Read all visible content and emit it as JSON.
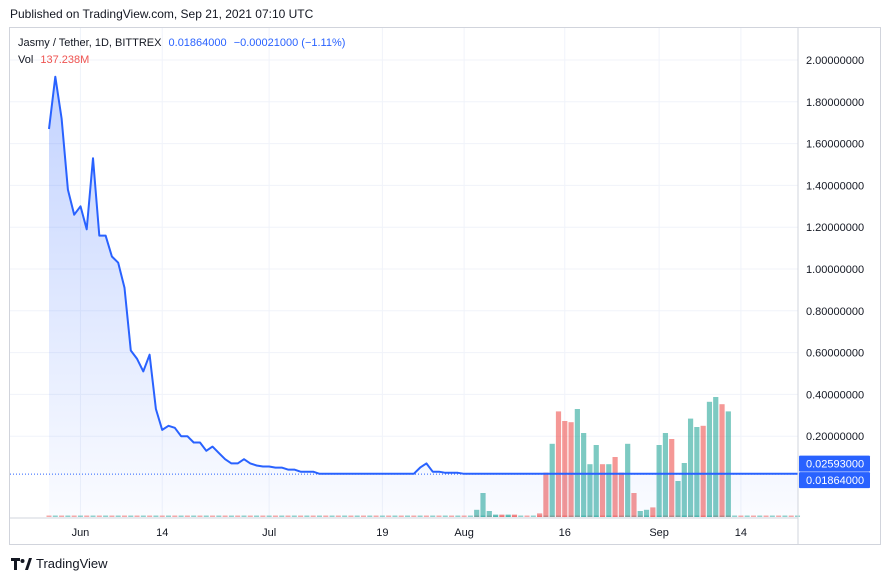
{
  "header": {
    "published": "Published on TradingView.com, Sep 21, 2021 07:10 UTC"
  },
  "legend": {
    "symbol": "Jasmy / Tether, 1D, BITTREX",
    "close": "0.01864000",
    "change": "−0.00021000 (−1.11%)",
    "vol_label": "Vol",
    "vol_value": "137.238M"
  },
  "footer": {
    "brand": "TradingView",
    "logo_icon": "tradingview-logo-icon"
  },
  "colors": {
    "line": "#2962ff",
    "area": "#2962ff",
    "vol_up": "#26a69a",
    "vol_down": "#ef5350",
    "grid": "#f0f3fa",
    "axis_text": "#131722"
  },
  "chart_data": {
    "type": "area",
    "x_unit": "date 2021",
    "ylim": [
      0,
      2.2
    ],
    "grid": true,
    "x_tick_labels": [
      {
        "day": 5,
        "label": "Jun"
      },
      {
        "day": 18,
        "label": "14"
      },
      {
        "day": 35,
        "label": "Jul"
      },
      {
        "day": 53,
        "label": "19"
      },
      {
        "day": 66,
        "label": "Aug"
      },
      {
        "day": 82,
        "label": "16"
      },
      {
        "day": 97,
        "label": "Sep"
      },
      {
        "day": 110,
        "label": "14"
      }
    ],
    "y_tick_labels": [
      "0.20000000",
      "0.40000000",
      "0.60000000",
      "0.80000000",
      "1.00000000",
      "1.20000000",
      "1.40000000",
      "1.60000000",
      "1.80000000",
      "2.00000000"
    ],
    "y_ticks": [
      0.2,
      0.4,
      0.6,
      0.8,
      1.0,
      1.2,
      1.4,
      1.6,
      1.8,
      2.0
    ],
    "price_labels": [
      {
        "value": 0.02593,
        "text": "0.02593000"
      },
      {
        "value": 0.01864,
        "text": "0.01864000"
      }
    ],
    "series": [
      {
        "name": "Jasmy / Tether",
        "x_start": "2021-05-27",
        "values": [
          1.67,
          1.92,
          1.72,
          1.38,
          1.26,
          1.3,
          1.19,
          1.53,
          1.16,
          1.16,
          1.06,
          1.03,
          0.91,
          0.61,
          0.57,
          0.51,
          0.59,
          0.33,
          0.23,
          0.25,
          0.24,
          0.2,
          0.2,
          0.17,
          0.17,
          0.13,
          0.15,
          0.12,
          0.09,
          0.07,
          0.07,
          0.09,
          0.07,
          0.06,
          0.055,
          0.055,
          0.05,
          0.05,
          0.04,
          0.04,
          0.03,
          0.03,
          0.03,
          0.02,
          0.02,
          0.02,
          0.02,
          0.02,
          0.02,
          0.02,
          0.02,
          0.02,
          0.02,
          0.02,
          0.02,
          0.02,
          0.02,
          0.02,
          0.02,
          0.05,
          0.07,
          0.03,
          0.03,
          0.025,
          0.025,
          0.025,
          0.02,
          0.02,
          0.02,
          0.02,
          0.02,
          0.02,
          0.02,
          0.02,
          0.02,
          0.02,
          0.02,
          0.02,
          0.02,
          0.02,
          0.02,
          0.02,
          0.02,
          0.02,
          0.02,
          0.02,
          0.02,
          0.02,
          0.02,
          0.02,
          0.02,
          0.02,
          0.02,
          0.02,
          0.02,
          0.02,
          0.02,
          0.02,
          0.02,
          0.02,
          0.02,
          0.02,
          0.02,
          0.02,
          0.02,
          0.02,
          0.02,
          0.02,
          0.02,
          0.02,
          0.02,
          0.02,
          0.02,
          0.02,
          0.02,
          0.02,
          0.02,
          0.02,
          0.02,
          0.02
        ]
      }
    ],
    "volume": {
      "name": "Vol",
      "bars": [
        {
          "day": 68,
          "v": 0.06,
          "up": true
        },
        {
          "day": 69,
          "v": 0.2,
          "up": true
        },
        {
          "day": 70,
          "v": 0.05,
          "up": true
        },
        {
          "day": 71,
          "v": 0.02,
          "up": true
        },
        {
          "day": 72,
          "v": 0.02,
          "up": false
        },
        {
          "day": 73,
          "v": 0.02,
          "up": true
        },
        {
          "day": 74,
          "v": 0.02,
          "up": false
        },
        {
          "day": 78,
          "v": 0.03,
          "up": false
        },
        {
          "day": 79,
          "v": 0.37,
          "up": false
        },
        {
          "day": 80,
          "v": 0.61,
          "up": true
        },
        {
          "day": 81,
          "v": 0.88,
          "up": false
        },
        {
          "day": 82,
          "v": 0.8,
          "up": false
        },
        {
          "day": 83,
          "v": 0.79,
          "up": false
        },
        {
          "day": 84,
          "v": 0.9,
          "up": true
        },
        {
          "day": 85,
          "v": 0.7,
          "up": true
        },
        {
          "day": 86,
          "v": 0.44,
          "up": true
        },
        {
          "day": 87,
          "v": 0.6,
          "up": true
        },
        {
          "day": 88,
          "v": 0.44,
          "up": false
        },
        {
          "day": 89,
          "v": 0.44,
          "up": true
        },
        {
          "day": 90,
          "v": 0.5,
          "up": false
        },
        {
          "day": 91,
          "v": 0.37,
          "up": false
        },
        {
          "day": 92,
          "v": 0.61,
          "up": true
        },
        {
          "day": 93,
          "v": 0.2,
          "up": false
        },
        {
          "day": 94,
          "v": 0.05,
          "up": true
        },
        {
          "day": 95,
          "v": 0.06,
          "up": true
        },
        {
          "day": 96,
          "v": 0.08,
          "up": false
        },
        {
          "day": 97,
          "v": 0.6,
          "up": true
        },
        {
          "day": 98,
          "v": 0.7,
          "up": true
        },
        {
          "day": 99,
          "v": 0.65,
          "up": false
        },
        {
          "day": 100,
          "v": 0.3,
          "up": true
        },
        {
          "day": 101,
          "v": 0.45,
          "up": true
        },
        {
          "day": 102,
          "v": 0.82,
          "up": true
        },
        {
          "day": 103,
          "v": 0.75,
          "up": true
        },
        {
          "day": 104,
          "v": 0.76,
          "up": false
        },
        {
          "day": 105,
          "v": 0.96,
          "up": true
        },
        {
          "day": 106,
          "v": 1.0,
          "up": true
        },
        {
          "day": 107,
          "v": 0.94,
          "up": false
        },
        {
          "day": 108,
          "v": 0.88,
          "up": true
        }
      ]
    }
  }
}
